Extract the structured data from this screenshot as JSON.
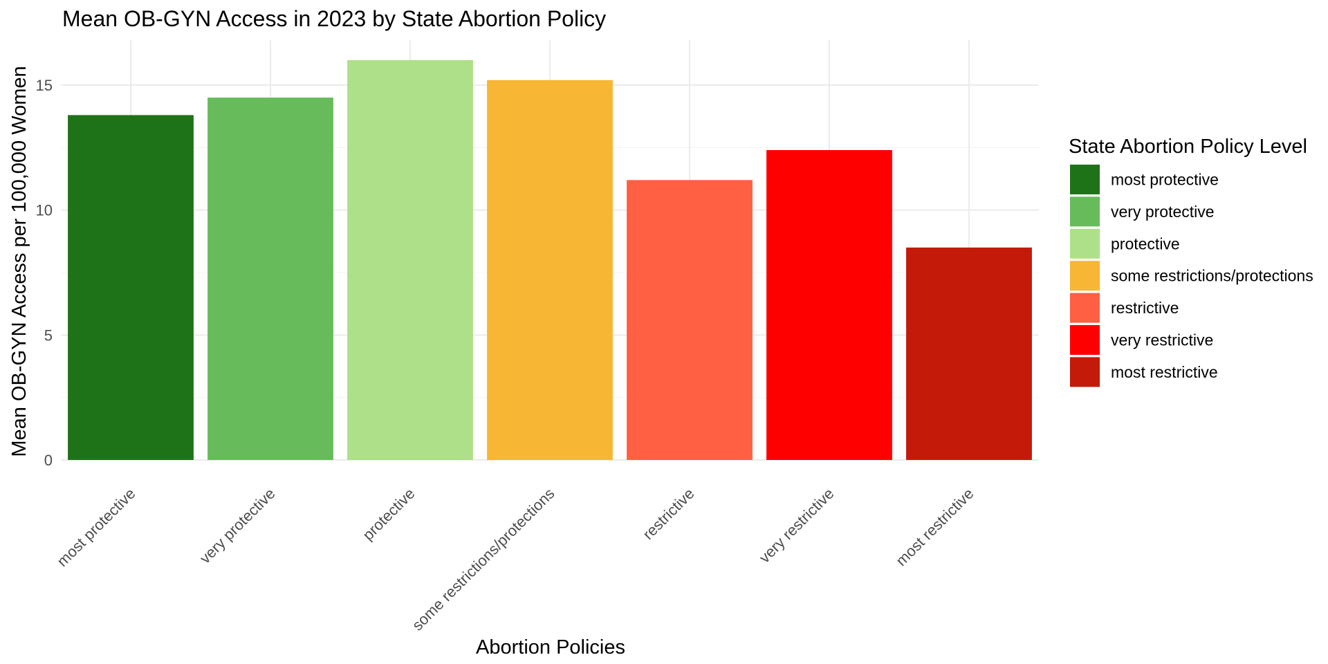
{
  "chart_data": {
    "type": "bar",
    "title": "Mean OB-GYN Access in 2023 by State Abortion Policy",
    "xlabel": "Abortion Policies",
    "ylabel": "Mean OB-GYN Access per 100,000 Women",
    "categories": [
      "most protective",
      "very protective",
      "protective",
      "some restrictions/protections",
      "restrictive",
      "very restrictive",
      "most restrictive"
    ],
    "values": [
      13.8,
      14.5,
      16.0,
      15.2,
      11.2,
      12.4,
      8.5
    ],
    "colors": [
      "#1e7318",
      "#67bb5b",
      "#aedf89",
      "#f8b635",
      "#ff5f42",
      "#ff0000",
      "#c31a09"
    ],
    "ylim": [
      0,
      16.8
    ],
    "yticks": [
      0,
      5,
      10,
      15
    ],
    "grid": true,
    "legend": {
      "title": "State Abortion Policy Level",
      "position": "right",
      "items": [
        "most protective",
        "very protective",
        "protective",
        "some restrictions/protections",
        "restrictive",
        "very restrictive",
        "most restrictive"
      ]
    }
  }
}
